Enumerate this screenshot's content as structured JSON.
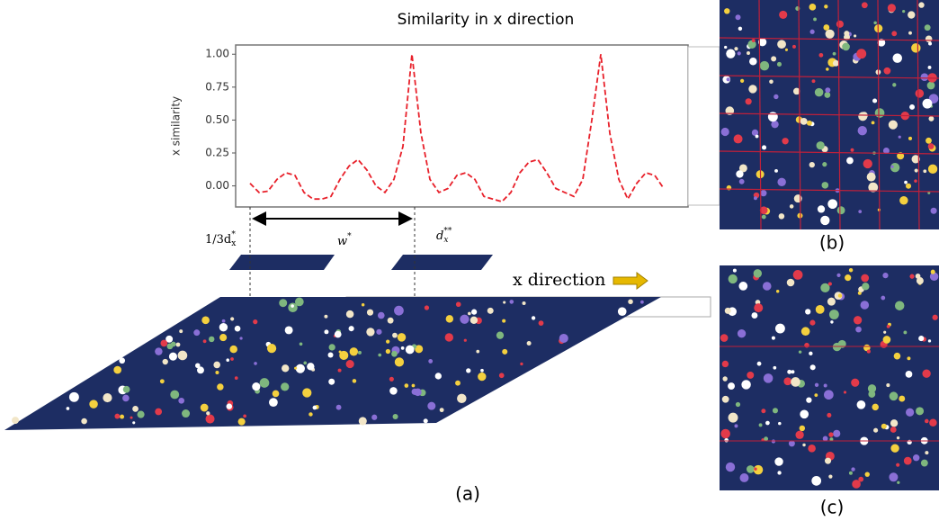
{
  "figure_title": "Similarity in x direction",
  "chart_data": {
    "type": "line",
    "ylabel": "x similarity",
    "series": [
      {
        "color": "#e8202a",
        "values": [
          0.02,
          -0.05,
          -0.04,
          0.05,
          0.1,
          0.08,
          -0.05,
          -0.1,
          -0.1,
          -0.08,
          0.05,
          0.15,
          0.2,
          0.12,
          0,
          -0.05,
          0.05,
          0.3,
          1.0,
          0.4,
          0.05,
          -0.05,
          -0.02,
          0.08,
          0.1,
          0.05,
          -0.08,
          -0.1,
          -0.12,
          -0.05,
          0.1,
          0.18,
          0.2,
          0.1,
          -0.02,
          -0.05,
          -0.08,
          0.05,
          0.5,
          1.0,
          0.4,
          0.05,
          -0.1,
          0.02,
          0.1,
          0.08,
          -0.02
        ]
      }
    ],
    "ylim": [
      -0.16,
      1.07
    ],
    "yticks": [
      {
        "value": 0,
        "label": "0.00"
      },
      {
        "value": 0.25,
        "label": "0.25"
      },
      {
        "value": 0.5,
        "label": "0.50"
      },
      {
        "value": 0.75,
        "label": "0.75"
      },
      {
        "value": 1,
        "label": "1.00"
      }
    ],
    "grid": false,
    "line_style": "dashed"
  },
  "annotations": {
    "left": {
      "main": "1/3d",
      "sub": "x",
      "sup": "*"
    },
    "width": {
      "main": "w",
      "sup": "*"
    },
    "right": {
      "main": "d",
      "sub": "x",
      "sup": "**"
    },
    "direction": "x direction"
  },
  "panel_labels": [
    "(a)",
    "(b)",
    "(c)"
  ]
}
